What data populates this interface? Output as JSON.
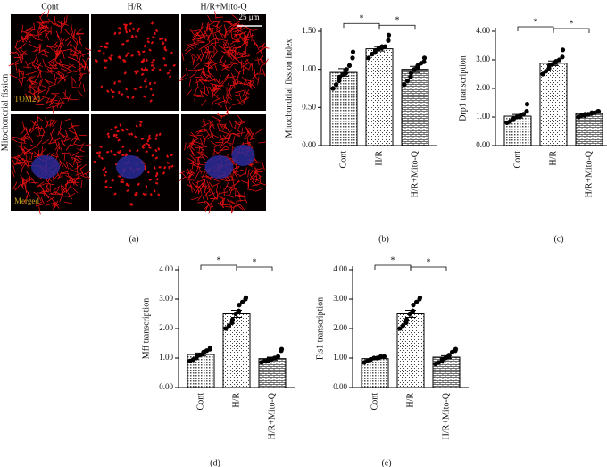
{
  "figure_a": {
    "columns": [
      "Cont",
      "H/R",
      "H/R+Mito-Q"
    ],
    "row_label": "Mitochondrial fission",
    "scale_bar": "25 μm",
    "stain_top": "TOM20",
    "stain_bottom": "Merged",
    "panel_label": "(a)"
  },
  "chart_data": [
    {
      "type": "bar",
      "panel_label": "(b)",
      "y_label": "Mitochondrial fission index",
      "categories": [
        "Cont",
        "H/R",
        "H/R+Mito-Q"
      ],
      "values": [
        0.96,
        1.27,
        1.0
      ],
      "errors": [
        0.05,
        0.03,
        0.04
      ],
      "points": [
        [
          0.75,
          0.8,
          0.85,
          0.9,
          0.93,
          0.95,
          1.0,
          1.05,
          1.15,
          1.23
        ],
        [
          1.15,
          1.2,
          1.22,
          1.25,
          1.27,
          1.28,
          1.3,
          1.3,
          1.38,
          1.45
        ],
        [
          0.8,
          0.85,
          0.9,
          0.95,
          1.0,
          1.02,
          1.05,
          1.08,
          1.1,
          1.15
        ]
      ],
      "ylim": [
        0,
        1.5
      ],
      "yticks": [
        {
          "value": 0,
          "label": "0.00"
        },
        {
          "value": 0.5,
          "label": "0.50"
        },
        {
          "value": 1,
          "label": "1.00"
        },
        {
          "value": 1.5,
          "label": "1.50"
        }
      ],
      "significance": [
        {
          "text": "*",
          "from": "Cont",
          "to": "H/R"
        },
        {
          "text": "*",
          "from": "H/R",
          "to": "H/R+Mito-Q"
        }
      ]
    },
    {
      "type": "bar",
      "panel_label": "(c)",
      "y_label": "Drp1 transcription",
      "categories": [
        "Cont",
        "H/R",
        "H/R+Mito-Q"
      ],
      "values": [
        1.03,
        2.88,
        1.12
      ],
      "errors": [
        0.06,
        0.08,
        0.02
      ],
      "points": [
        [
          0.8,
          0.85,
          0.9,
          0.95,
          1.0,
          1.0,
          1.05,
          1.1,
          1.2,
          1.45
        ],
        [
          2.5,
          2.6,
          2.7,
          2.8,
          2.85,
          2.9,
          2.95,
          3.0,
          3.1,
          3.35
        ],
        [
          1.0,
          1.05,
          1.05,
          1.1,
          1.1,
          1.12,
          1.15,
          1.15,
          1.2,
          1.2
        ]
      ],
      "ylim": [
        0,
        4
      ],
      "yticks": [
        {
          "value": 0,
          "label": "0.00"
        },
        {
          "value": 1,
          "label": "1.00"
        },
        {
          "value": 2,
          "label": "2.00"
        },
        {
          "value": 3,
          "label": "3.00"
        },
        {
          "value": 4,
          "label": "4.00"
        }
      ],
      "significance": [
        {
          "text": "*",
          "from": "Cont",
          "to": "H/R"
        },
        {
          "text": "*",
          "from": "H/R",
          "to": "H/R+Mito-Q"
        }
      ]
    },
    {
      "type": "bar",
      "panel_label": "(d)",
      "y_label": "Mff transcription",
      "categories": [
        "Cont",
        "H/R",
        "H/R+Mito-Q"
      ],
      "values": [
        1.12,
        2.5,
        0.98
      ],
      "errors": [
        0.05,
        0.12,
        0.05
      ],
      "points": [
        [
          0.9,
          0.95,
          1.0,
          1.05,
          1.1,
          1.15,
          1.2,
          1.25,
          1.3,
          1.35
        ],
        [
          2.0,
          2.1,
          2.2,
          2.3,
          2.5,
          2.6,
          2.8,
          2.9,
          3.0,
          3.05
        ],
        [
          0.85,
          0.9,
          0.9,
          0.95,
          0.95,
          1.0,
          1.0,
          1.05,
          1.25,
          1.3
        ]
      ],
      "ylim": [
        0,
        4
      ],
      "yticks": [
        {
          "value": 0,
          "label": "0.00"
        },
        {
          "value": 1,
          "label": "1.00"
        },
        {
          "value": 2,
          "label": "2.00"
        },
        {
          "value": 3,
          "label": "3.00"
        },
        {
          "value": 4,
          "label": "4.00"
        }
      ],
      "significance": [
        {
          "text": "*",
          "from": "Cont",
          "to": "H/R"
        },
        {
          "text": "*",
          "from": "H/R",
          "to": "H/R+Mito-Q"
        }
      ]
    },
    {
      "type": "bar",
      "panel_label": "(e)",
      "y_label": "Fis1 transcription",
      "categories": [
        "Cont",
        "H/R",
        "H/R+Mito-Q"
      ],
      "values": [
        0.98,
        2.5,
        1.03
      ],
      "errors": [
        0.03,
        0.12,
        0.05
      ],
      "points": [
        [
          0.85,
          0.9,
          0.95,
          0.95,
          1.0,
          1.0,
          1.0,
          1.05,
          1.05,
          1.05
        ],
        [
          2.0,
          2.1,
          2.2,
          2.3,
          2.5,
          2.6,
          2.8,
          2.9,
          3.0,
          3.05
        ],
        [
          0.8,
          0.85,
          0.9,
          0.95,
          1.0,
          1.05,
          1.1,
          1.2,
          1.25,
          1.3
        ]
      ],
      "ylim": [
        0,
        4
      ],
      "yticks": [
        {
          "value": 0,
          "label": "0.00"
        },
        {
          "value": 1,
          "label": "1.00"
        },
        {
          "value": 2,
          "label": "2.00"
        },
        {
          "value": 3,
          "label": "3.00"
        },
        {
          "value": 4,
          "label": "4.00"
        }
      ],
      "significance": [
        {
          "text": "*",
          "from": "Cont",
          "to": "H/R"
        },
        {
          "text": "*",
          "from": "H/R",
          "to": "H/R+Mito-Q"
        }
      ]
    }
  ]
}
